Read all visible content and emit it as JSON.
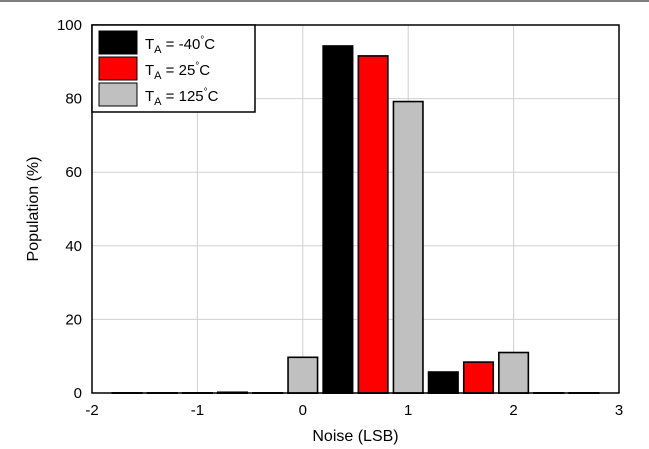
{
  "chart_data": {
    "type": "bar",
    "xlabel": "Noise (LSB)",
    "ylabel": "Population (%)",
    "xlim": [
      -2,
      3
    ],
    "ylim": [
      0,
      100
    ],
    "xticks": [
      "-2",
      "-1",
      "0",
      "1",
      "2",
      "3"
    ],
    "yticks": [
      "0",
      "20",
      "40",
      "60",
      "80",
      "100"
    ],
    "grid": true,
    "legend_position": "top-left",
    "bin_centers": [
      -1.667,
      -1.333,
      -1.0,
      -0.667,
      -0.333,
      0.0,
      0.333,
      0.667,
      1.0,
      1.333,
      1.667,
      2.0,
      2.333,
      2.667
    ],
    "series": [
      {
        "name_main": "T",
        "name_sub": "A",
        "name_rest": " = -40",
        "name_unit": "C",
        "color": "#000000",
        "values": [
          0,
          0,
          0,
          0,
          0,
          0,
          94.3,
          0,
          0,
          5.7,
          0,
          0,
          0,
          0
        ]
      },
      {
        "name_main": "T",
        "name_sub": "A",
        "name_rest": " = 25",
        "name_unit": "C",
        "color": "#ff0000",
        "values": [
          0,
          0,
          0,
          0,
          0,
          0,
          0,
          91.6,
          0,
          0,
          8.4,
          0,
          0,
          0
        ]
      },
      {
        "name_main": "T",
        "name_sub": "A",
        "name_rest": " = 125",
        "name_unit": "C",
        "color": "#c0c0c0",
        "values": [
          0,
          0,
          0,
          0.2,
          0,
          9.7,
          0,
          0,
          79.2,
          0,
          0,
          11.0,
          0,
          0
        ]
      }
    ]
  }
}
